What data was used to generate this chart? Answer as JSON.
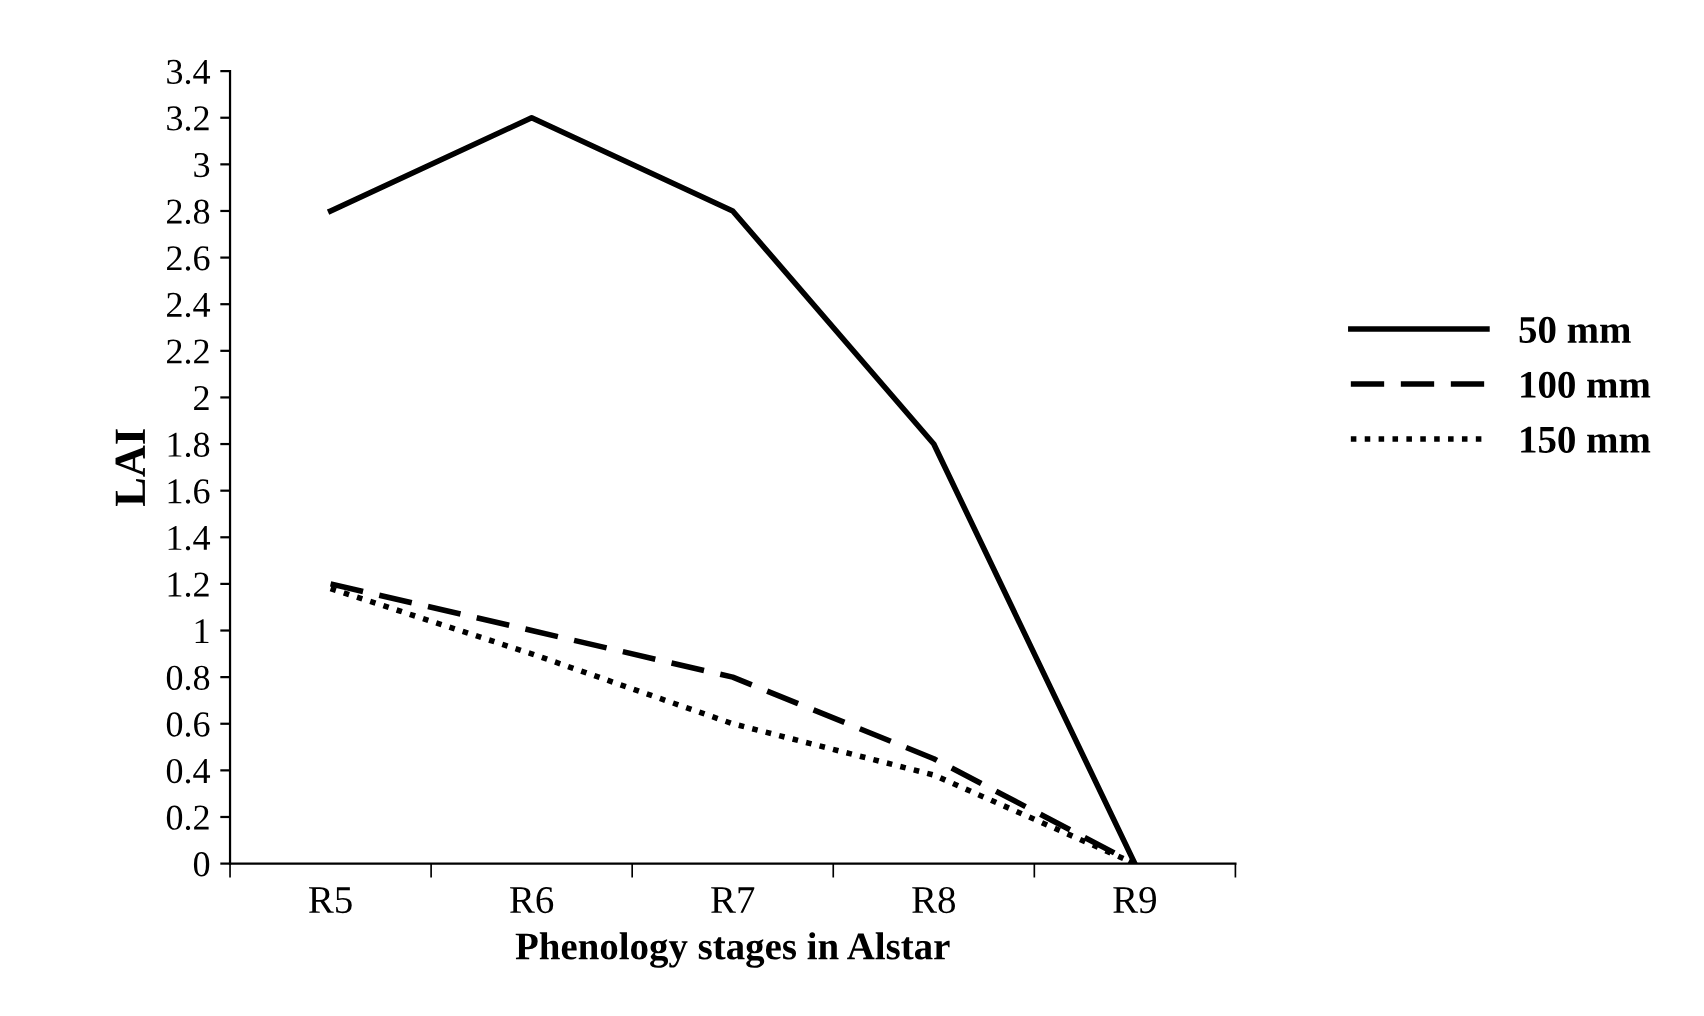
{
  "chart_data": {
    "type": "line",
    "xlabel": "Phenology stages in Alstar",
    "ylabel": "LAI",
    "categories": [
      "R5",
      "R6",
      "R7",
      "R8",
      "R9"
    ],
    "series": [
      {
        "name": "50 mm",
        "color": "#000000",
        "line_style": "solid",
        "values": [
          2.8,
          3.2,
          2.8,
          1.8,
          0
        ]
      },
      {
        "name": "100 mm",
        "color": "#000000",
        "line_style": "dashed",
        "values": [
          1.2,
          1.0,
          0.8,
          0.45,
          0
        ]
      },
      {
        "name": "150 mm",
        "color": "#000000",
        "line_style": "dotted",
        "values": [
          1.18,
          0.9,
          0.6,
          0.38,
          0
        ]
      }
    ],
    "ylim": [
      0,
      3.4
    ],
    "yticks": [
      0,
      0.2,
      0.4,
      0.6,
      0.8,
      1,
      1.2,
      1.4,
      1.6,
      1.8,
      2,
      2.2,
      2.4,
      2.6,
      2.8,
      3,
      3.2,
      3.4
    ],
    "grid": false,
    "legend": "right"
  }
}
